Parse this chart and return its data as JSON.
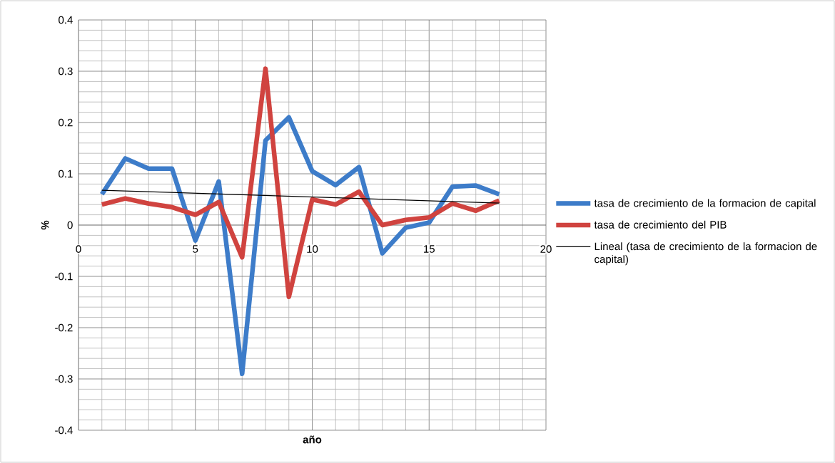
{
  "chart_data": {
    "type": "line",
    "xlabel": "año",
    "ylabel": "%",
    "x": [
      1,
      2,
      3,
      4,
      5,
      6,
      7,
      8,
      9,
      10,
      11,
      12,
      13,
      14,
      15,
      16,
      17,
      18
    ],
    "series": [
      {
        "name": "tasa de crecimiento de la formacion de capital",
        "color": "#3d7cc9",
        "values": [
          0.06,
          0.13,
          0.11,
          0.11,
          -0.03,
          0.085,
          -0.29,
          0.165,
          0.21,
          0.105,
          0.078,
          0.113,
          -0.055,
          -0.005,
          0.005,
          0.075,
          0.077,
          0.06
        ]
      },
      {
        "name": "tasa de crecimiento del PIB",
        "color": "#d0433f",
        "values": [
          0.04,
          0.052,
          0.042,
          0.035,
          0.02,
          0.045,
          -0.063,
          0.305,
          -0.14,
          0.05,
          0.04,
          0.065,
          0.0,
          0.01,
          0.015,
          0.042,
          0.028,
          0.048
        ]
      },
      {
        "name": "Lineal (tasa de crecimiento de la formacion de capital)",
        "color": "#000000",
        "type": "line",
        "x": [
          1,
          18
        ],
        "values": [
          0.068,
          0.043
        ]
      }
    ],
    "xlim": [
      0,
      20
    ],
    "ylim": [
      -0.4,
      0.4
    ],
    "xticks": [
      0,
      5,
      10,
      15,
      20
    ],
    "yticks": [
      -0.4,
      -0.3,
      -0.2,
      -0.1,
      0,
      0.1,
      0.2,
      0.3,
      0.4
    ],
    "grid": true,
    "legend": "right",
    "marker": "none",
    "line_style": "solid"
  }
}
